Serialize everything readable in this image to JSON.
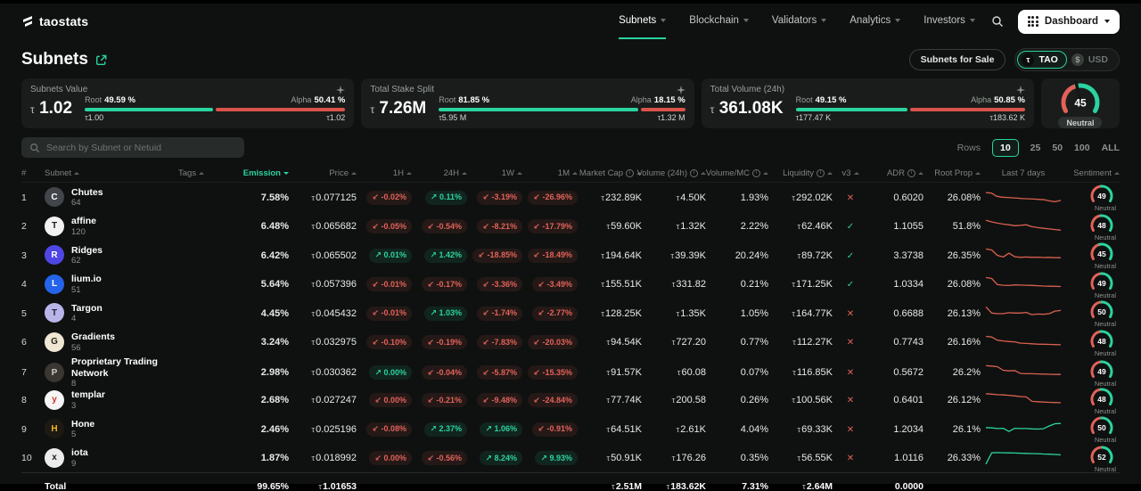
{
  "currency_symbol": "τ",
  "colors": {
    "accent": "#2bd3a0",
    "red": "#d9534b",
    "badge_up": "#2bd3a0",
    "badge_down": "#e2625a"
  },
  "nav": {
    "logo": "taostats",
    "items": [
      {
        "label": "Subnets",
        "active": true
      },
      {
        "label": "Blockchain",
        "active": false
      },
      {
        "label": "Validators",
        "active": false
      },
      {
        "label": "Analytics",
        "active": false
      },
      {
        "label": "Investors",
        "active": false
      }
    ],
    "dashboard_label": "Dashboard"
  },
  "header": {
    "title": "Subnets",
    "subnets_for_sale": "Subnets for Sale",
    "currency": {
      "tao": "TAO",
      "usd": "USD",
      "selected": "TAO"
    }
  },
  "cards": [
    {
      "label": "Subnets Value",
      "value": "1.02",
      "root_label": "Root",
      "root_pct": "49.59 %",
      "alpha_label": "Alpha",
      "alpha_pct": "50.41 %",
      "root_ratio": 49.59,
      "low": "1.00",
      "high": "1.02"
    },
    {
      "label": "Total Stake Split",
      "value": "7.26M",
      "root_label": "Root",
      "root_pct": "81.85 %",
      "alpha_label": "Alpha",
      "alpha_pct": "18.15 %",
      "root_ratio": 81.85,
      "low": "5.95 M",
      "high": "1.32 M"
    },
    {
      "label": "Total Volume (24h)",
      "value": "361.08K",
      "root_label": "Root",
      "root_pct": "49.15 %",
      "alpha_label": "Alpha",
      "alpha_pct": "50.85 %",
      "root_ratio": 49.15,
      "low": "177.47 K",
      "high": "183.62 K"
    }
  ],
  "fear_gauge": {
    "value": 45,
    "label": "Neutral"
  },
  "controls": {
    "search_placeholder": "Search by Subnet or Netuid",
    "rows_label": "Rows",
    "row_options": [
      "10",
      "25",
      "50",
      "100",
      "ALL"
    ],
    "selected_rows": "10"
  },
  "table": {
    "columns": [
      {
        "label": "#",
        "align": "left",
        "sortable": false
      },
      {
        "label": "Subnet",
        "align": "left",
        "sortable": true
      },
      {
        "label": "Tags",
        "align": "left",
        "sortable": true
      },
      {
        "label": "Emission",
        "align": "right",
        "sortable": true,
        "sorted": "desc",
        "accent": true
      },
      {
        "label": "Price",
        "align": "right",
        "sortable": true
      },
      {
        "label": "1H",
        "align": "right",
        "sortable": true
      },
      {
        "label": "24H",
        "align": "right",
        "sortable": true
      },
      {
        "label": "1W",
        "align": "right",
        "sortable": true
      },
      {
        "label": "1M",
        "align": "right",
        "sortable": true
      },
      {
        "label": "Market Cap",
        "align": "right",
        "sortable": true,
        "info": true
      },
      {
        "label": "Volume (24h)",
        "align": "right",
        "sortable": true,
        "info": true
      },
      {
        "label": "Volume/MC",
        "align": "right",
        "sortable": true,
        "info": true
      },
      {
        "label": "Liquidity",
        "align": "right",
        "sortable": true,
        "info": true
      },
      {
        "label": "v3",
        "align": "center",
        "sortable": true
      },
      {
        "label": "ADR",
        "align": "right",
        "sortable": true,
        "info": true
      },
      {
        "label": "Root Prop",
        "align": "right",
        "sortable": true
      },
      {
        "label": "Last 7 days",
        "align": "center",
        "sortable": false
      },
      {
        "label": "Sentiment",
        "align": "right",
        "sortable": true
      }
    ],
    "rows": [
      {
        "rank": "1",
        "name": "Chutes",
        "netuid": "64",
        "icon": {
          "bg": "#42464a",
          "fg": "#ffffff",
          "glyph": "C"
        },
        "emission": "7.58%",
        "price": "0.077125",
        "h1": {
          "v": "-0.02%",
          "dir": "down"
        },
        "h24": {
          "v": "0.11%",
          "dir": "up"
        },
        "w1": {
          "v": "-3.19%",
          "dir": "down"
        },
        "m1": {
          "v": "-26.96%",
          "dir": "down"
        },
        "market_cap": "232.89K",
        "volume": "4.50K",
        "volume_mc": "1.93%",
        "liquidity": "292.02K",
        "v3": false,
        "adr": "0.6020",
        "root_prop": "26.08%",
        "spark": {
          "color": "red",
          "points": [
            18,
            20,
            40,
            46,
            48,
            50,
            52,
            55,
            56,
            58,
            60,
            62,
            70,
            74,
            66
          ]
        },
        "sentiment": {
          "value": 49,
          "label": "Neutral"
        }
      },
      {
        "rank": "2",
        "name": "affine",
        "netuid": "120",
        "icon": {
          "bg": "#f2f2f2",
          "fg": "#1a1a1a",
          "glyph": "T"
        },
        "emission": "6.48%",
        "price": "0.065682",
        "h1": {
          "v": "-0.05%",
          "dir": "down"
        },
        "h24": {
          "v": "-0.54%",
          "dir": "down"
        },
        "w1": {
          "v": "-8.21%",
          "dir": "down"
        },
        "m1": {
          "v": "-17.79%",
          "dir": "down"
        },
        "market_cap": "59.60K",
        "volume": "1.32K",
        "volume_mc": "2.22%",
        "liquidity": "62.46K",
        "v3": true,
        "adr": "1.1055",
        "root_prop": "51.8%",
        "spark": {
          "color": "red",
          "points": [
            12,
            22,
            30,
            36,
            40,
            46,
            44,
            40,
            52,
            58,
            62,
            66,
            70,
            74
          ]
        },
        "sentiment": {
          "value": 48,
          "label": "Neutral"
        }
      },
      {
        "rank": "3",
        "name": "Ridges",
        "netuid": "62",
        "icon": {
          "bg": "#4f46e5",
          "fg": "#ffffff",
          "glyph": "R"
        },
        "emission": "6.42%",
        "price": "0.065502",
        "h1": {
          "v": "0.01%",
          "dir": "up"
        },
        "h24": {
          "v": "1.42%",
          "dir": "up"
        },
        "w1": {
          "v": "-18.85%",
          "dir": "down"
        },
        "m1": {
          "v": "-18.49%",
          "dir": "down"
        },
        "market_cap": "194.64K",
        "volume": "39.39K",
        "volume_mc": "20.24%",
        "liquidity": "89.72K",
        "v3": true,
        "adr": "3.3738",
        "root_prop": "26.35%",
        "spark": {
          "color": "red",
          "points": [
            8,
            14,
            48,
            58,
            34,
            56,
            60,
            58,
            60,
            59,
            61,
            60,
            62,
            62
          ]
        },
        "sentiment": {
          "value": 45,
          "label": "Neutral"
        }
      },
      {
        "rank": "4",
        "name": "lium.io",
        "netuid": "51",
        "icon": {
          "bg": "#2563eb",
          "fg": "#ffffff",
          "glyph": "L"
        },
        "emission": "5.64%",
        "price": "0.057396",
        "h1": {
          "v": "-0.01%",
          "dir": "down"
        },
        "h24": {
          "v": "-0.17%",
          "dir": "down"
        },
        "w1": {
          "v": "-3.36%",
          "dir": "down"
        },
        "m1": {
          "v": "-3.49%",
          "dir": "down"
        },
        "market_cap": "155.51K",
        "volume": "331.82",
        "volume_mc": "0.21%",
        "liquidity": "171.25K",
        "v3": true,
        "adr": "1.0334",
        "root_prop": "26.08%",
        "spark": {
          "color": "red",
          "points": [
            8,
            14,
            52,
            56,
            58,
            54,
            55,
            56,
            57,
            59,
            61,
            62,
            63,
            64
          ]
        },
        "sentiment": {
          "value": 49,
          "label": "Neutral"
        }
      },
      {
        "rank": "5",
        "name": "Targon",
        "netuid": "4",
        "icon": {
          "bg": "#b9b5e9",
          "fg": "#22213a",
          "glyph": "T"
        },
        "emission": "4.45%",
        "price": "0.045432",
        "h1": {
          "v": "-0.01%",
          "dir": "down"
        },
        "h24": {
          "v": "1.03%",
          "dir": "up"
        },
        "w1": {
          "v": "-1.74%",
          "dir": "down"
        },
        "m1": {
          "v": "-2.77%",
          "dir": "down"
        },
        "market_cap": "128.25K",
        "volume": "1.35K",
        "volume_mc": "1.05%",
        "liquidity": "164.77K",
        "v3": false,
        "adr": "0.6688",
        "root_prop": "26.13%",
        "spark": {
          "color": "red",
          "points": [
            8,
            46,
            50,
            50,
            44,
            46,
            46,
            42,
            56,
            52,
            54,
            50,
            34,
            30
          ]
        },
        "sentiment": {
          "value": 50,
          "label": "Neutral"
        }
      },
      {
        "rank": "6",
        "name": "Gradients",
        "netuid": "56",
        "icon": {
          "bg": "#efe7d4",
          "fg": "#23201a",
          "glyph": "G"
        },
        "emission": "3.24%",
        "price": "0.032975",
        "h1": {
          "v": "-0.10%",
          "dir": "down"
        },
        "h24": {
          "v": "-0.19%",
          "dir": "down"
        },
        "w1": {
          "v": "-7.83%",
          "dir": "down"
        },
        "m1": {
          "v": "-20.03%",
          "dir": "down"
        },
        "market_cap": "94.54K",
        "volume": "727.20",
        "volume_mc": "0.77%",
        "liquidity": "112.27K",
        "v3": false,
        "adr": "0.7743",
        "root_prop": "26.16%",
        "spark": {
          "color": "red",
          "points": [
            14,
            18,
            38,
            42,
            46,
            48,
            56,
            58,
            60,
            62,
            63,
            64,
            65,
            66
          ]
        },
        "sentiment": {
          "value": 48,
          "label": "Neutral"
        }
      },
      {
        "rank": "7",
        "name": "Proprietary Trading Network",
        "netuid": "8",
        "icon": {
          "bg": "#3a3632",
          "fg": "#cfcac2",
          "glyph": "P"
        },
        "emission": "2.98%",
        "price": "0.030362",
        "h1": {
          "v": "0.00%",
          "dir": "up"
        },
        "h24": {
          "v": "-0.04%",
          "dir": "down"
        },
        "w1": {
          "v": "-5.87%",
          "dir": "down"
        },
        "m1": {
          "v": "-15.35%",
          "dir": "down"
        },
        "market_cap": "91.57K",
        "volume": "60.08",
        "volume_mc": "0.07%",
        "liquidity": "116.85K",
        "v3": false,
        "adr": "0.5672",
        "root_prop": "26.2%",
        "spark": {
          "color": "red",
          "points": [
            8,
            10,
            14,
            36,
            40,
            38,
            56,
            58,
            58,
            59,
            60,
            61,
            62,
            62
          ]
        },
        "sentiment": {
          "value": 49,
          "label": "Neutral"
        }
      },
      {
        "rank": "8",
        "name": "templar",
        "netuid": "3",
        "icon": {
          "bg": "#f5f5f5",
          "fg": "#d0342c",
          "glyph": "y"
        },
        "emission": "2.68%",
        "price": "0.027247",
        "h1": {
          "v": "0.00%",
          "dir": "down"
        },
        "h24": {
          "v": "-0.21%",
          "dir": "down"
        },
        "w1": {
          "v": "-9.48%",
          "dir": "down"
        },
        "m1": {
          "v": "-24.84%",
          "dir": "down"
        },
        "market_cap": "77.74K",
        "volume": "200.58",
        "volume_mc": "0.26%",
        "liquidity": "100.56K",
        "v3": false,
        "adr": "0.6401",
        "root_prop": "26.12%",
        "spark": {
          "color": "red",
          "points": [
            10,
            13,
            16,
            18,
            20,
            24,
            28,
            30,
            58,
            60,
            62,
            64,
            65,
            66
          ]
        },
        "sentiment": {
          "value": 48,
          "label": "Neutral"
        }
      },
      {
        "rank": "9",
        "name": "Hone",
        "netuid": "5",
        "icon": {
          "bg": "#1c1a12",
          "fg": "#f0b429",
          "glyph": "H"
        },
        "emission": "2.46%",
        "price": "0.025196",
        "h1": {
          "v": "-0.08%",
          "dir": "down"
        },
        "h24": {
          "v": "2.37%",
          "dir": "up"
        },
        "w1": {
          "v": "1.06%",
          "dir": "up"
        },
        "m1": {
          "v": "-0.91%",
          "dir": "down"
        },
        "market_cap": "64.51K",
        "volume": "2.61K",
        "volume_mc": "4.04%",
        "liquidity": "69.33K",
        "v3": false,
        "adr": "1.2034",
        "root_prop": "26.1%",
        "spark": {
          "color": "green",
          "points": [
            38,
            40,
            44,
            42,
            62,
            42,
            44,
            44,
            46,
            47,
            45,
            28,
            14,
            12
          ]
        },
        "sentiment": {
          "value": 50,
          "label": "Neutral"
        }
      },
      {
        "rank": "10",
        "name": "iota",
        "netuid": "9",
        "icon": {
          "bg": "#ececec",
          "fg": "#1a1a1a",
          "glyph": "x"
        },
        "emission": "1.87%",
        "price": "0.018992",
        "h1": {
          "v": "0.00%",
          "dir": "down"
        },
        "h24": {
          "v": "-0.56%",
          "dir": "down"
        },
        "w1": {
          "v": "8.24%",
          "dir": "up"
        },
        "m1": {
          "v": "9.93%",
          "dir": "up"
        },
        "market_cap": "50.91K",
        "volume": "176.26",
        "volume_mc": "0.35%",
        "liquidity": "56.55K",
        "v3": false,
        "adr": "1.0116",
        "root_prop": "26.33%",
        "spark": {
          "color": "green",
          "points": [
            88,
            18,
            16,
            17,
            18,
            19,
            20,
            21,
            22,
            23,
            25,
            26,
            28,
            30
          ]
        },
        "sentiment": {
          "value": 52,
          "label": "Neutral"
        }
      }
    ],
    "total": {
      "label": "Total",
      "emission": "99.65%",
      "price": "1.01653",
      "market_cap": "2.51M",
      "volume": "183.62K",
      "volume_mc": "7.31%",
      "liquidity": "2.64M",
      "adr": "0.0000"
    }
  }
}
